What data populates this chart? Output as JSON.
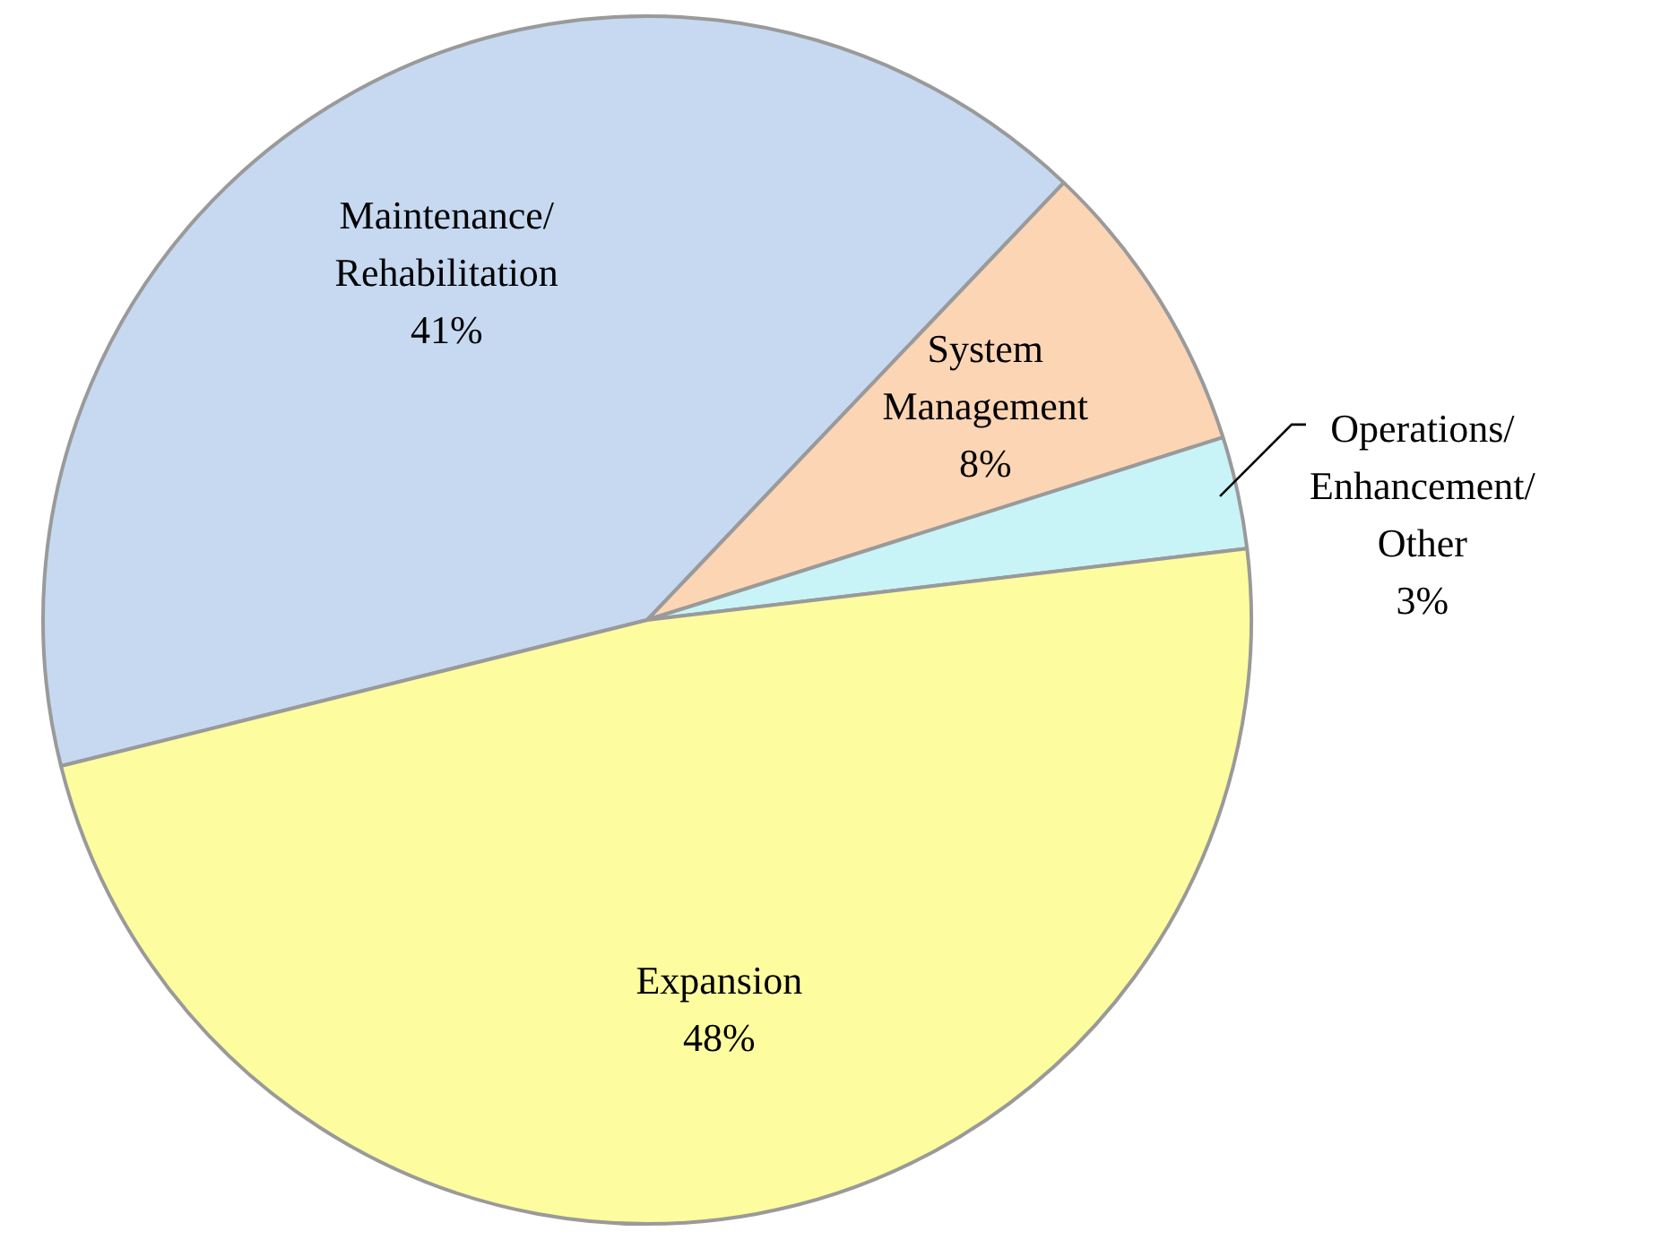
{
  "chart_data": {
    "type": "pie",
    "categories": [
      "Maintenance/Rehabilitation",
      "System Management",
      "Operations/Enhancement/Other",
      "Expansion"
    ],
    "values": [
      41,
      8,
      3,
      48
    ],
    "colors": [
      "#c6d9f1",
      "#fcd5b5",
      "#c9f4f7",
      "#fdfd9f"
    ],
    "value_labels": [
      "41%",
      "8%",
      "3%",
      "48%"
    ],
    "legend": false
  }
}
